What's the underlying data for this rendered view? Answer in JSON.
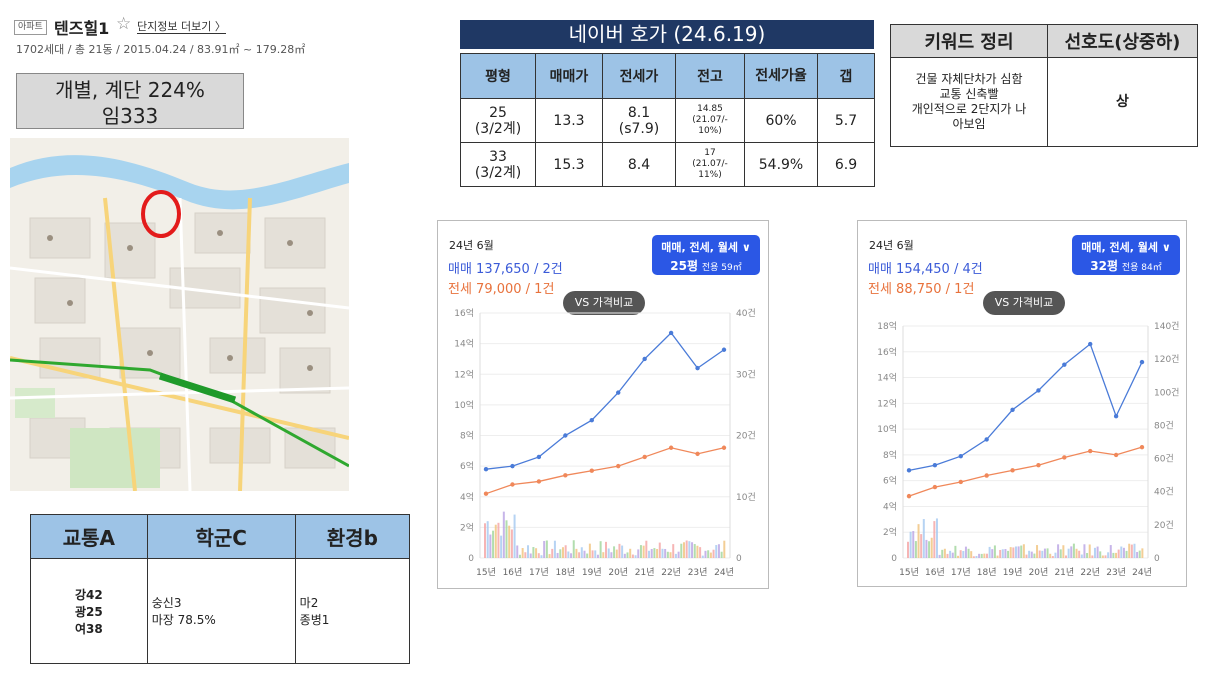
{
  "header": {
    "badge": "아파트",
    "name": "텐즈힐1",
    "star_icon": "star-outline-icon",
    "more_link": "단지정보 더보기 〉",
    "meta": "1702세대 / 총 21동 / 2015.04.24 / 83.91㎡ ~ 179.28㎡"
  },
  "summary": {
    "line1": "개별, 계단 224%",
    "line2": "임333"
  },
  "map": {
    "circle_color": "#e31b1b",
    "subway_color": "#2fa82f"
  },
  "naver": {
    "title": "네이버 호가 (24.6.19)",
    "headers": [
      "평형",
      "매매가",
      "전세가",
      "전고",
      "전세가율",
      "갭"
    ],
    "rows": [
      {
        "type_a": "25",
        "type_b": "(3/2계)",
        "sale": "13.3",
        "lease_a": "8.1",
        "lease_b": "(s7.9)",
        "high_a": "14.85",
        "high_b": "(21.07/-",
        "high_c": "10%)",
        "ratio": "60%",
        "gap": "5.7"
      },
      {
        "type_a": "33",
        "type_b": "(3/2계)",
        "sale": "15.3",
        "lease_a": "8.4",
        "lease_b": "",
        "high_a": "17",
        "high_b": "(21.07/-",
        "high_c": "11%)",
        "ratio": "54.9%",
        "gap": "6.9"
      }
    ]
  },
  "keyword": {
    "headers": [
      "키워드 정리",
      "선호도(상중하)"
    ],
    "lines": [
      "건물 자체단차가 심함",
      "교통 신축빨",
      "개인적으로 2단지가 나",
      "아보임"
    ],
    "grade": "상"
  },
  "score": {
    "headers": [
      "교통A",
      "학군C",
      "환경b"
    ],
    "traffic": [
      "강42",
      "광25",
      "여38"
    ],
    "school": [
      "숭신3",
      "마장 78.5%"
    ],
    "env": [
      "마2",
      "종병1"
    ]
  },
  "chart_cards": [
    {
      "month": "24년 6월",
      "sale_text": "매매 137,650 / 2건",
      "lease_text": "전세 79,000 / 1건",
      "dropdown_line1": "매매, 전세, 월세 ∨",
      "dropdown_size": "25평",
      "dropdown_area": "전용 59㎡",
      "vs_label": "VS 가격비교"
    },
    {
      "month": "24년 6월",
      "sale_text": "매매 154,450 / 4건",
      "lease_text": "전세 88,750 / 1건",
      "dropdown_line1": "매매, 전세, 월세 ∨",
      "dropdown_size": "32평",
      "dropdown_area": "전용 84㎡",
      "vs_label": "VS 가격비교"
    }
  ],
  "chart_data": [
    {
      "type": "line",
      "x": [
        "15년",
        "16년",
        "17년",
        "18년",
        "19년",
        "20년",
        "21년",
        "22년",
        "23년",
        "24년"
      ],
      "series": [
        {
          "name": "매매",
          "values": [
            5.8,
            6.0,
            6.6,
            8.0,
            9.0,
            10.8,
            13.0,
            14.7,
            12.4,
            13.6
          ]
        },
        {
          "name": "전세",
          "values": [
            4.2,
            4.8,
            5.0,
            5.4,
            5.7,
            6.0,
            6.6,
            7.2,
            6.8,
            7.2
          ]
        }
      ],
      "y_ticks": [
        "0",
        "2억",
        "4억",
        "6억",
        "8억",
        "10억",
        "12억",
        "14억",
        "16억"
      ],
      "y2_ticks": [
        "0",
        "10건",
        "20건",
        "30건",
        "40건"
      ],
      "ylim": [
        0,
        16
      ],
      "y2lim": [
        0,
        40
      ],
      "colors": {
        "sale": "#4a7bd8",
        "lease": "#f0885a"
      }
    },
    {
      "type": "line",
      "x": [
        "15년",
        "16년",
        "17년",
        "18년",
        "19년",
        "20년",
        "21년",
        "22년",
        "23년",
        "24년"
      ],
      "series": [
        {
          "name": "매매",
          "values": [
            6.8,
            7.2,
            7.9,
            9.2,
            11.5,
            13.0,
            15.0,
            16.6,
            11.0,
            15.2
          ]
        },
        {
          "name": "전세",
          "values": [
            4.8,
            5.5,
            5.9,
            6.4,
            6.8,
            7.2,
            7.8,
            8.3,
            8.0,
            8.6
          ]
        }
      ],
      "y_ticks": [
        "0",
        "2억",
        "4억",
        "6억",
        "8억",
        "10억",
        "12억",
        "14억",
        "16억",
        "18억"
      ],
      "y2_ticks": [
        "0",
        "20건",
        "40건",
        "60건",
        "80건",
        "100건",
        "120건",
        "140건"
      ],
      "ylim": [
        0,
        18
      ],
      "y2lim": [
        0,
        140
      ],
      "colors": {
        "sale": "#4a7bd8",
        "lease": "#f0885a"
      }
    }
  ]
}
